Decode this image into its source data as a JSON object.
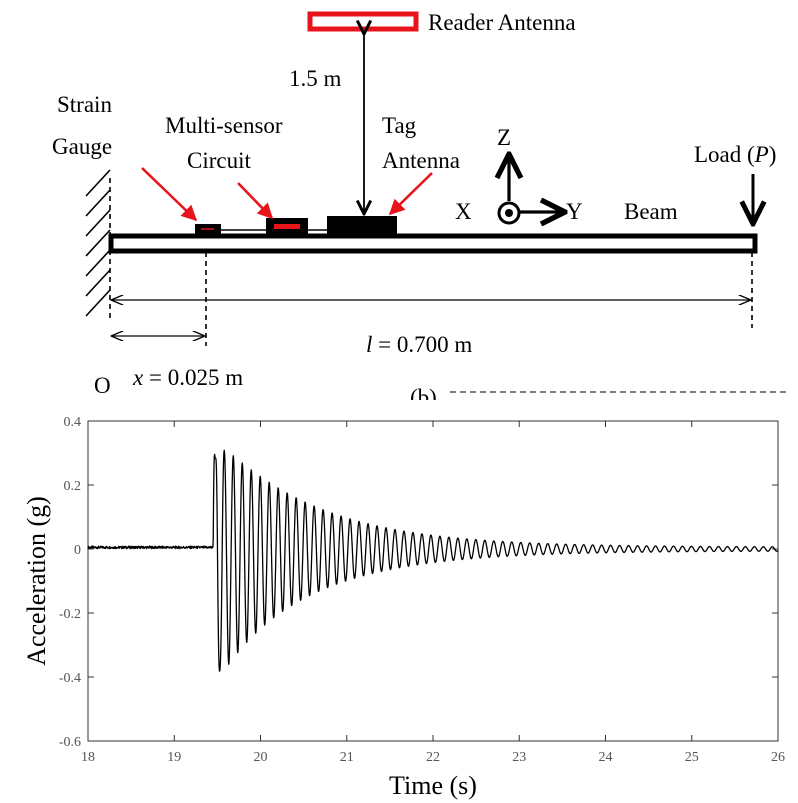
{
  "diagram": {
    "labels": {
      "reader_antenna": "Reader Antenna",
      "distance": "1.5 m",
      "strain_gauge_line1": "Strain",
      "strain_gauge_line2": "Gauge",
      "multi_sensor_line1": "Multi-sensor",
      "multi_sensor_line2": "Circuit",
      "tag_antenna_line1": "Tag",
      "tag_antenna_line2": "Antenna",
      "axis_z": "Z",
      "axis_x": "X",
      "axis_y": "Y",
      "beam": "Beam",
      "load_prefix": "Load (",
      "load_symbol": "P",
      "load_suffix": ")",
      "length_symbol": "l",
      "length_value": " = 0.700 m",
      "position_symbol": "x",
      "position_value": " = 0.025 m",
      "origin": "O",
      "partial_caption": "(b)"
    },
    "colors": {
      "beam": "#000000",
      "accent": "#e8141c",
      "antenna_fill": "#ffffff"
    }
  },
  "chart_data": {
    "type": "line",
    "title": "",
    "xlabel": "Time (s)",
    "ylabel": "Acceleration (g)",
    "xlim": [
      18,
      26
    ],
    "ylim": [
      -0.6,
      0.4
    ],
    "xticks": [
      18,
      19,
      20,
      21,
      22,
      23,
      24,
      25,
      26
    ],
    "yticks": [
      0.4,
      0.2,
      0,
      -0.2,
      -0.4,
      -0.6
    ],
    "ytick_labels": [
      "0.4",
      "0.2",
      "0",
      "-0.2",
      "-0.4",
      "-0.6"
    ],
    "grid": false,
    "series": [
      {
        "impact_time_s": 19.45,
        "baseline": 0.005,
        "first_peak_max": 0.34,
        "first_peak_min": -0.43,
        "oscillation_frequency_hz": 9.6,
        "decay_rate_per_s": 0.92,
        "end_amplitude": 0.01,
        "color": "#000000"
      }
    ]
  }
}
